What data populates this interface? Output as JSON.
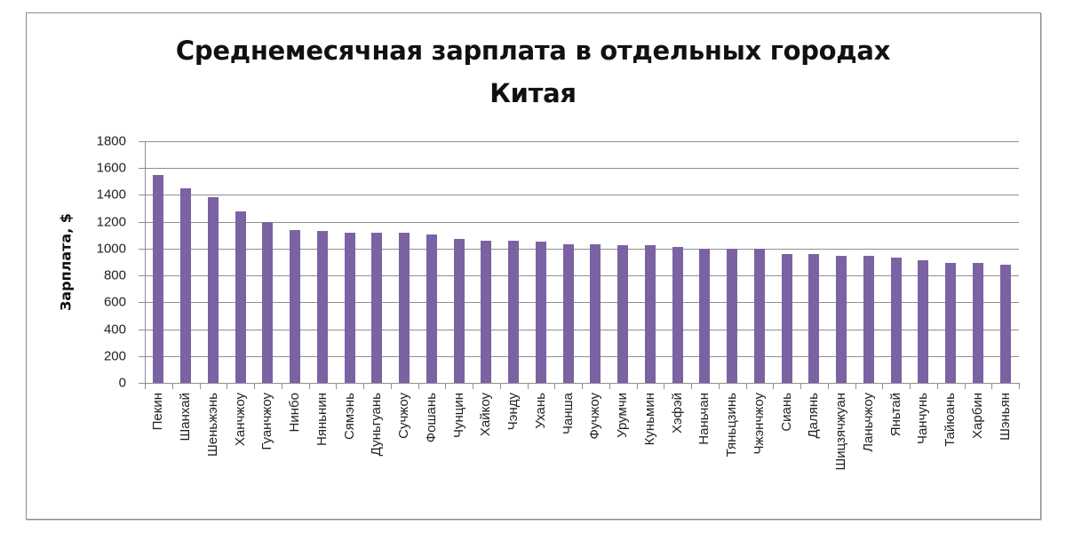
{
  "chart_data": {
    "type": "bar",
    "title": "Среднемесячная зарплата в отдельных городах Китая",
    "title_lines": [
      "Среднемесячная зарплата в отдельных городах",
      "Китая"
    ],
    "xlabel": "",
    "ylabel": "Зарплата, $",
    "ylim": [
      0,
      1800
    ],
    "yticks": [
      0,
      200,
      400,
      600,
      800,
      1000,
      1200,
      1400,
      1600,
      1800
    ],
    "grid": true,
    "legend": null,
    "bar_color": "#7b62a3",
    "categories": [
      "Пекин",
      "Шанхай",
      "Шеньжэнь",
      "Ханчжоу",
      "Гуанчжоу",
      "Нинбо",
      "Няньнин",
      "Сямэнь",
      "Дуньгуань",
      "Сучжоу",
      "Фошань",
      "Чунцин",
      "Хайкоу",
      "Чэнду",
      "Ухань",
      "Чанша",
      "Фучжоу",
      "Урумчи",
      "Куньмин",
      "Хэфэй",
      "Наньчан",
      "Тяньцзинь",
      "Чжэнчжоу",
      "Сиань",
      "Далянь",
      "Шицзячжуан",
      "Ланьчжоу",
      "Яньтай",
      "Чанчунь",
      "Тайюань",
      "Харбин",
      "Шэньян"
    ],
    "values": [
      1550,
      1450,
      1385,
      1280,
      1200,
      1140,
      1130,
      1120,
      1120,
      1120,
      1105,
      1075,
      1060,
      1060,
      1050,
      1035,
      1035,
      1025,
      1025,
      1010,
      1000,
      1000,
      1000,
      960,
      960,
      947,
      947,
      933,
      913,
      893,
      893,
      880
    ]
  }
}
